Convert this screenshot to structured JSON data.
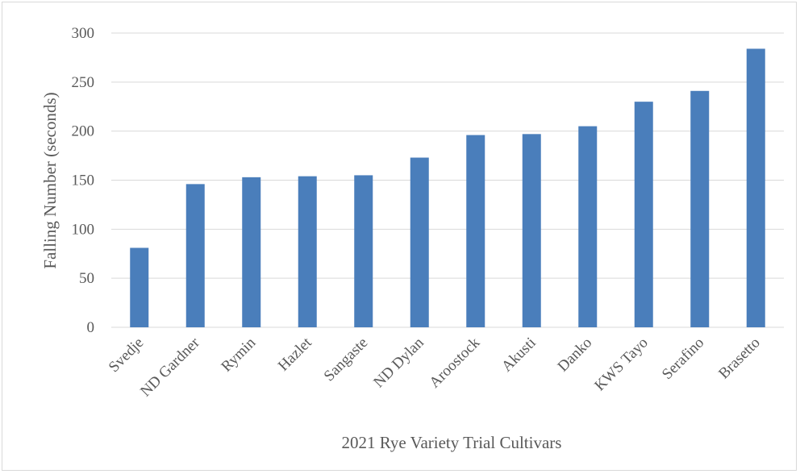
{
  "chart_data": {
    "type": "bar",
    "title": "",
    "xlabel": "2021 Rye Variety Trial Cultivars",
    "ylabel": "Falling Number (seconds)",
    "categories": [
      "Svedje",
      "ND Gardner",
      "Rymin",
      "Hazlet",
      "Sangaste",
      "ND Dylan",
      "Aroostock",
      "Akusti",
      "Danko",
      "KWS Tayo",
      "Serafino",
      "Brasetto"
    ],
    "values": [
      81,
      146,
      153,
      154,
      155,
      173,
      196,
      197,
      205,
      230,
      241,
      284
    ],
    "ylim": [
      0,
      300
    ],
    "yticks": [
      0,
      50,
      100,
      150,
      200,
      250,
      300
    ],
    "grid": true,
    "legend": "none",
    "colors": {
      "bar": "#4a7ebb",
      "grid": "#d9d9d9",
      "text": "#595959"
    }
  }
}
